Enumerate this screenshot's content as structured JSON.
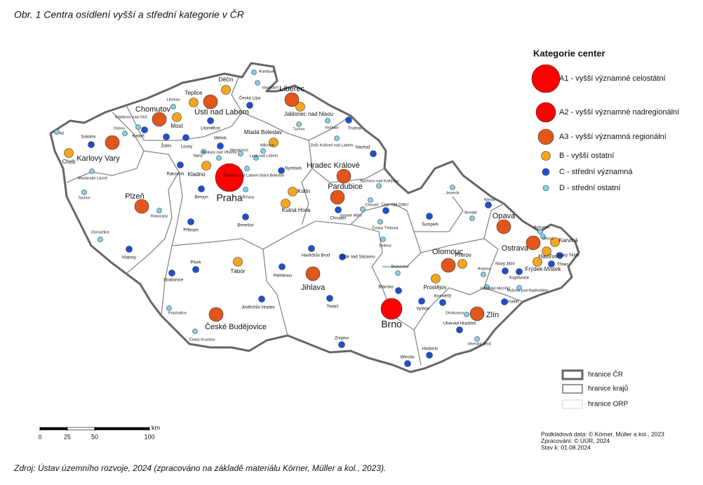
{
  "title": "Obr. 1 Centra osídlení vyšší a střední kategorie v ČR",
  "source": "Zdroj: Ústav územního rozvoje, 2024 (zpracováno na základě materiálu Körner, Müller a kol., 2023).",
  "legend": {
    "title": "Kategorie center",
    "items": [
      {
        "category": "A1",
        "label": "A1 - vyšší významné celostátní",
        "color": "#ff0000"
      },
      {
        "category": "A2",
        "label": "A2 - vyšší významné nadregionální",
        "color": "#ff0000"
      },
      {
        "category": "A3",
        "label": "A3 - vyšší významná regionální",
        "color": "#e0561b"
      },
      {
        "category": "B",
        "label": "B - vyšší ostatní",
        "color": "#f4a71e"
      },
      {
        "category": "C",
        "label": "C - střední významná",
        "color": "#1f4fd1"
      },
      {
        "category": "D",
        "label": "D - střední ostatní",
        "color": "#7fd3ea"
      }
    ],
    "borders": [
      "hranice ČR",
      "hranice krajů",
      "hranice ORP"
    ]
  },
  "scale": {
    "ticks": [
      0,
      25,
      50,
      100
    ],
    "unit": "km"
  },
  "credits": [
    "Podkladová data: © Körner, Müller a kol., 2023",
    "Zpracování: © ÚÚR, 2024",
    "Stav k: 01.08.2024"
  ],
  "cities": [
    {
      "name": "Praha",
      "category": "A1"
    },
    {
      "name": "Brno",
      "category": "A2"
    },
    {
      "name": "Karlovy Vary",
      "category": "A3"
    },
    {
      "name": "Plzeň",
      "category": "A3"
    },
    {
      "name": "Ústí nad Labem",
      "category": "A3"
    },
    {
      "name": "Chomutov",
      "category": "A3"
    },
    {
      "name": "Liberec",
      "category": "A3"
    },
    {
      "name": "Hradec Králové",
      "category": "A3"
    },
    {
      "name": "Pardubice",
      "category": "A3"
    },
    {
      "name": "Jihlava",
      "category": "A3"
    },
    {
      "name": "České Budějovice",
      "category": "A3"
    },
    {
      "name": "Olomouc",
      "category": "A3"
    },
    {
      "name": "Ostrava",
      "category": "A3"
    },
    {
      "name": "Opava",
      "category": "A3"
    },
    {
      "name": "Zlín",
      "category": "A3"
    },
    {
      "name": "Děčín",
      "category": "B"
    },
    {
      "name": "Teplice",
      "category": "B"
    },
    {
      "name": "Most",
      "category": "B"
    },
    {
      "name": "Jablonec nad Nisou",
      "category": "B"
    },
    {
      "name": "Mladá Boleslav",
      "category": "B"
    },
    {
      "name": "Kladno",
      "category": "B"
    },
    {
      "name": "Kolín",
      "category": "B"
    },
    {
      "name": "Kutná Hora",
      "category": "B"
    },
    {
      "name": "Tábor",
      "category": "B"
    },
    {
      "name": "Prostějov",
      "category": "B"
    },
    {
      "name": "Přerov",
      "category": "B"
    },
    {
      "name": "Frýdek-Místek",
      "category": "B"
    },
    {
      "name": "Havířov",
      "category": "B"
    },
    {
      "name": "Karviná",
      "category": "B"
    },
    {
      "name": "Cheb",
      "category": "B"
    },
    {
      "name": "Sokolov",
      "category": "C"
    },
    {
      "name": "Kadaň",
      "category": "C"
    },
    {
      "name": "Žatec",
      "category": "C"
    },
    {
      "name": "Louny",
      "category": "C"
    },
    {
      "name": "Litoměřice",
      "category": "C"
    },
    {
      "name": "Česká Lípa",
      "category": "C"
    },
    {
      "name": "Mělník",
      "category": "C"
    },
    {
      "name": "Rakovník",
      "category": "C"
    },
    {
      "name": "Beroun",
      "category": "C"
    },
    {
      "name": "Příbram",
      "category": "C"
    },
    {
      "name": "Benešov",
      "category": "C"
    },
    {
      "name": "Nymburk",
      "category": "C"
    },
    {
      "name": "Trutnov",
      "category": "C"
    },
    {
      "name": "Náchod",
      "category": "C"
    },
    {
      "name": "Chrudim",
      "category": "C"
    },
    {
      "name": "Ústí nad Orlicí",
      "category": "C"
    },
    {
      "name": "Šumperk",
      "category": "C"
    },
    {
      "name": "Klatovy",
      "category": "C"
    },
    {
      "name": "Strakonice",
      "category": "C"
    },
    {
      "name": "Písek",
      "category": "C"
    },
    {
      "name": "Jindřichův Hradec",
      "category": "C"
    },
    {
      "name": "Pelhřimov",
      "category": "C"
    },
    {
      "name": "Havlíčkův Brod",
      "category": "C"
    },
    {
      "name": "Žďár nad Sázavou",
      "category": "C"
    },
    {
      "name": "Třebíč",
      "category": "C"
    },
    {
      "name": "Blansko",
      "category": "C"
    },
    {
      "name": "Vyškov",
      "category": "C"
    },
    {
      "name": "Znojmo",
      "category": "C"
    },
    {
      "name": "Hodonín",
      "category": "C"
    },
    {
      "name": "Břeclav",
      "category": "C"
    },
    {
      "name": "Kroměříž",
      "category": "C"
    },
    {
      "name": "Uherské Hradiště",
      "category": "C"
    },
    {
      "name": "Vsetín",
      "category": "C"
    },
    {
      "name": "Nový Jičín",
      "category": "C"
    },
    {
      "name": "Český Těšín",
      "category": "C"
    },
    {
      "name": "Třinec",
      "category": "C"
    },
    {
      "name": "Krnov",
      "category": "C"
    },
    {
      "name": "Kopřivnice",
      "category": "C"
    },
    {
      "name": "Rumburk",
      "category": "D"
    },
    {
      "name": "Varnsdorf",
      "category": "D"
    },
    {
      "name": "Klášterec nad Ohří",
      "category": "D"
    },
    {
      "name": "Ostrov",
      "category": "D"
    },
    {
      "name": "Aš",
      "category": "D"
    },
    {
      "name": "Mariánské Lázně",
      "category": "D"
    },
    {
      "name": "Tachov",
      "category": "D"
    },
    {
      "name": "Domažlice",
      "category": "D"
    },
    {
      "name": "Rokycany",
      "category": "D"
    },
    {
      "name": "Prachatice",
      "category": "D"
    },
    {
      "name": "Český Krumlov",
      "category": "D"
    },
    {
      "name": "Turnov",
      "category": "D"
    },
    {
      "name": "Vrchlabí",
      "category": "D"
    },
    {
      "name": "Dvůr Králové nad Labem",
      "category": "D"
    },
    {
      "name": "Litvínov",
      "category": "D"
    },
    {
      "name": "Slaný",
      "category": "D"
    },
    {
      "name": "Kralupy nad Vltavou",
      "category": "D"
    },
    {
      "name": "Neratovice",
      "category": "D"
    },
    {
      "name": "Lysá nad Labem",
      "category": "D"
    },
    {
      "name": "Brandýs nad Labem-Stará Boleslav",
      "category": "D"
    },
    {
      "name": "Říčany",
      "category": "D"
    },
    {
      "name": "Milovice",
      "category": "D"
    },
    {
      "name": "Rychnov nad Kněžnou",
      "category": "D"
    },
    {
      "name": "Choceň",
      "category": "D"
    },
    {
      "name": "Vysoké Mýto",
      "category": "D"
    },
    {
      "name": "Česká Třebová",
      "category": "D"
    },
    {
      "name": "Svitavy",
      "category": "D"
    },
    {
      "name": "Jeseník",
      "category": "D"
    },
    {
      "name": "Bruntál",
      "category": "D"
    },
    {
      "name": "Bohumín",
      "category": "D"
    },
    {
      "name": "Orlová",
      "category": "D"
    },
    {
      "name": "Hranice",
      "category": "D"
    },
    {
      "name": "Valašské Meziříčí",
      "category": "D"
    },
    {
      "name": "Rožnov pod Radhoštěm",
      "category": "D"
    },
    {
      "name": "Otrokovice",
      "category": "D"
    },
    {
      "name": "Uherský Brod",
      "category": "D"
    },
    {
      "name": "Boskovice",
      "category": "D"
    }
  ]
}
